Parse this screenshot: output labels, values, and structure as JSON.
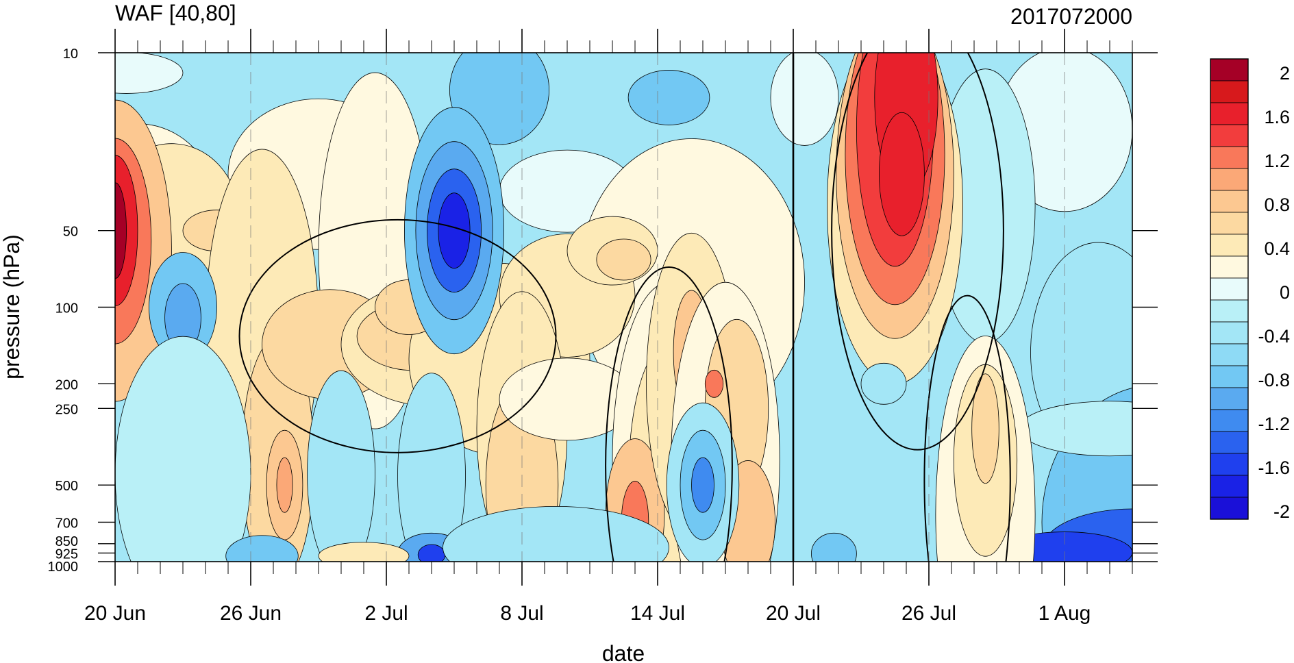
{
  "title_left": "WAF [40,80]",
  "title_right": "2017072000",
  "chart_data": {
    "type": "heatmap",
    "title": "WAF [40,80]",
    "subtitle": "2017072000",
    "xlabel": "date",
    "ylabel": "pressure (hPa)",
    "x_tick_labels": [
      "20 Jun",
      "26 Jun",
      "2 Jul",
      "8 Jul",
      "14 Jul",
      "20 Jul",
      "26 Jul",
      "1 Aug"
    ],
    "x_range": [
      "20 Jun",
      "4 Aug"
    ],
    "y_scale": "log",
    "y_range": [
      1000,
      10
    ],
    "y_tick_labels": [
      "10",
      "50",
      "100",
      "200",
      "250",
      "500",
      "700",
      "850",
      "925",
      "1000"
    ],
    "y_ticks": [
      10,
      50,
      100,
      200,
      250,
      500,
      700,
      850,
      925,
      1000
    ],
    "colorbar": {
      "labels": [
        "2",
        "1.6",
        "1.2",
        "0.8",
        "0.4",
        "0",
        "-0.4",
        "-0.8",
        "-1.2",
        "-1.6",
        "-2"
      ],
      "colors": [
        "#a50026",
        "#d7191c",
        "#e8202c",
        "#f23d3d",
        "#f9785a",
        "#fba877",
        "#fcc891",
        "#fcd9a1",
        "#fdeab7",
        "#fff9e0",
        "#e8fbfb",
        "#b9f0f7",
        "#a3e6f6",
        "#8edaf5",
        "#72c8f3",
        "#5aaaf0",
        "#3f8bf0",
        "#2a62ef",
        "#1f40ee",
        "#1a22e6",
        "#1a10d8"
      ]
    },
    "current_date_marker": "20 Jul",
    "features": [
      {
        "note": "strong positive maximum",
        "date": "20 Jun",
        "pressure": 50,
        "value": 2.0
      },
      {
        "note": "positive maximum",
        "date": "23 Jul",
        "pressure": 30,
        "value": 1.8
      },
      {
        "note": "negative minimum",
        "date": "3 Jul",
        "pressure": 50,
        "value": -1.6
      },
      {
        "note": "positive maximum",
        "date": "13 Jul",
        "pressure": 700,
        "value": 1.0
      },
      {
        "note": "negative minimum",
        "date": "2 Aug",
        "pressure": 925,
        "value": -1.6
      }
    ]
  }
}
